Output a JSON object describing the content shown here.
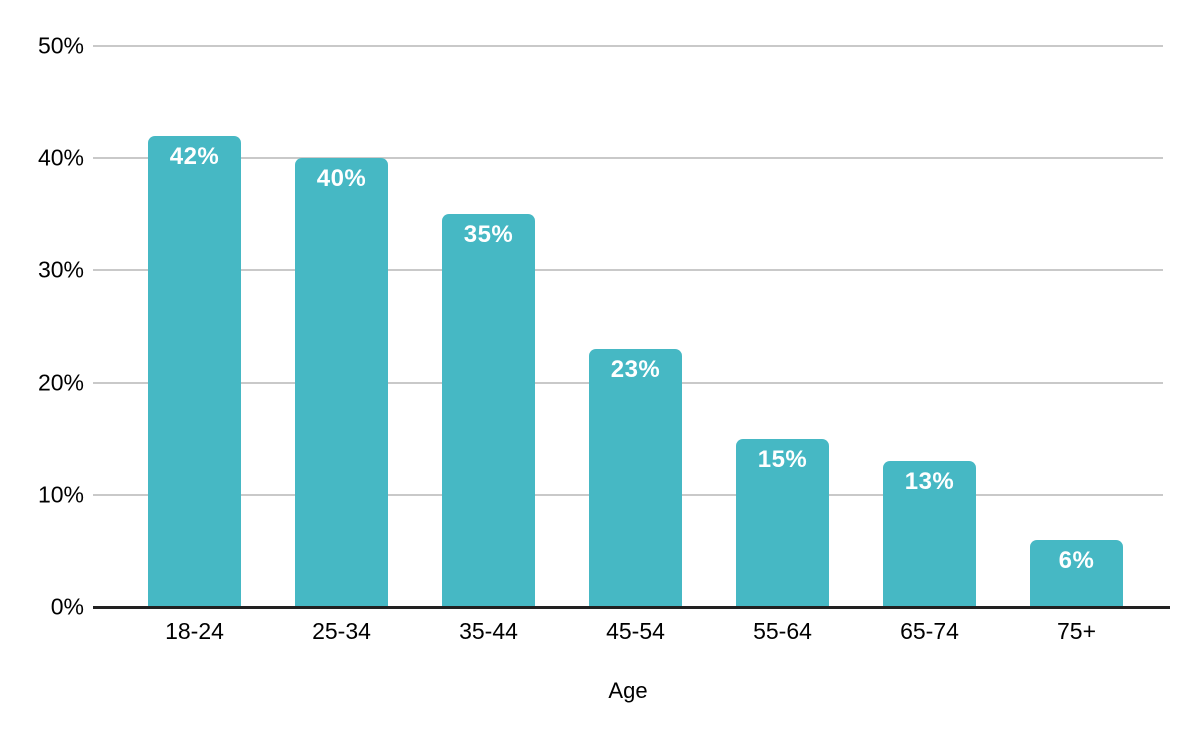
{
  "chart_data": {
    "type": "bar",
    "title": "",
    "categories": [
      "18-24",
      "25-34",
      "35-44",
      "45-54",
      "55-64",
      "65-74",
      "75+"
    ],
    "values": [
      42,
      40,
      35,
      23,
      15,
      13,
      6
    ],
    "value_labels": [
      "42%",
      "40%",
      "35%",
      "23%",
      "15%",
      "13%",
      "6%"
    ],
    "xlabel": "Age",
    "ylabel": "",
    "ylim": [
      0,
      50
    ],
    "y_ticks": [
      {
        "label": "0%",
        "value": 0
      },
      {
        "label": "10%",
        "value": 10
      },
      {
        "label": "20%",
        "value": 20
      },
      {
        "label": "30%",
        "value": 30
      },
      {
        "label": "40%",
        "value": 40
      },
      {
        "label": "50%",
        "value": 50
      }
    ],
    "grid": true,
    "legend": "none",
    "colors": {
      "bar": "#46b8c4",
      "bar_value_text": "#ffffff",
      "gridline": "#c9c9c9",
      "axis_line": "#212121",
      "tick_text": "#000000"
    }
  }
}
